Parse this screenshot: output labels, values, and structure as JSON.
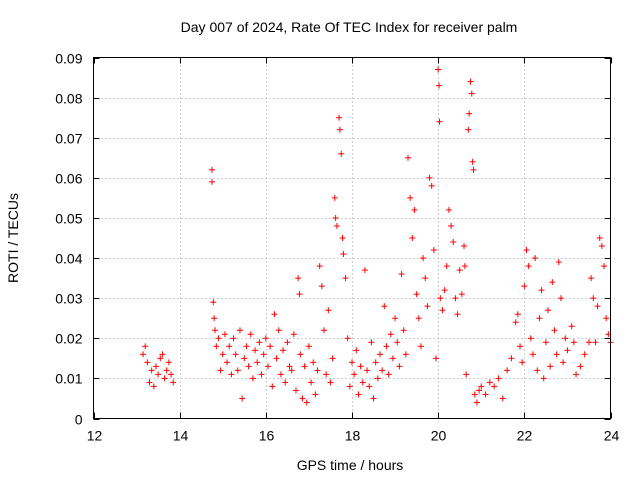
{
  "chart_data": {
    "type": "scatter",
    "title": "Day 007 of 2024, Rate Of TEC Index for receiver palm",
    "xlabel": "GPS time / hours",
    "ylabel": "ROTI / TECUs",
    "xlim": [
      12,
      24
    ],
    "ylim": [
      0,
      0.09
    ],
    "xticks": [
      "12",
      "14",
      "16",
      "18",
      "20",
      "22",
      "24"
    ],
    "yticks": [
      "0",
      "0.01",
      "0.02",
      "0.03",
      "0.04",
      "0.05",
      "0.06",
      "0.07",
      "0.08",
      "0.09"
    ],
    "grid": true,
    "marker": "+",
    "series": [
      {
        "name": "palm",
        "color": "#ff0000",
        "points": [
          [
            13.15,
            0.016
          ],
          [
            13.2,
            0.018
          ],
          [
            13.25,
            0.014
          ],
          [
            13.3,
            0.009
          ],
          [
            13.35,
            0.012
          ],
          [
            13.4,
            0.008
          ],
          [
            13.45,
            0.013
          ],
          [
            13.5,
            0.011
          ],
          [
            13.55,
            0.015
          ],
          [
            13.6,
            0.016
          ],
          [
            13.65,
            0.01
          ],
          [
            13.7,
            0.012
          ],
          [
            13.75,
            0.014
          ],
          [
            13.8,
            0.011
          ],
          [
            13.85,
            0.009
          ],
          [
            14.75,
            0.062
          ],
          [
            14.75,
            0.059
          ],
          [
            14.78,
            0.029
          ],
          [
            14.8,
            0.025
          ],
          [
            14.82,
            0.022
          ],
          [
            14.85,
            0.018
          ],
          [
            14.9,
            0.02
          ],
          [
            14.95,
            0.012
          ],
          [
            15.0,
            0.016
          ],
          [
            15.05,
            0.021
          ],
          [
            15.1,
            0.014
          ],
          [
            15.15,
            0.018
          ],
          [
            15.2,
            0.011
          ],
          [
            15.25,
            0.02
          ],
          [
            15.3,
            0.016
          ],
          [
            15.35,
            0.012
          ],
          [
            15.4,
            0.022
          ],
          [
            15.45,
            0.005
          ],
          [
            15.5,
            0.015
          ],
          [
            15.55,
            0.018
          ],
          [
            15.6,
            0.013
          ],
          [
            15.65,
            0.021
          ],
          [
            15.7,
            0.01
          ],
          [
            15.75,
            0.017
          ],
          [
            15.8,
            0.014
          ],
          [
            15.85,
            0.019
          ],
          [
            15.9,
            0.011
          ],
          [
            15.95,
            0.016
          ],
          [
            16.0,
            0.02
          ],
          [
            16.05,
            0.013
          ],
          [
            16.1,
            0.018
          ],
          [
            16.15,
            0.008
          ],
          [
            16.2,
            0.026
          ],
          [
            16.25,
            0.015
          ],
          [
            16.3,
            0.022
          ],
          [
            16.35,
            0.011
          ],
          [
            16.4,
            0.017
          ],
          [
            16.45,
            0.009
          ],
          [
            16.5,
            0.019
          ],
          [
            16.55,
            0.013
          ],
          [
            16.6,
            0.012
          ],
          [
            16.65,
            0.021
          ],
          [
            16.7,
            0.007
          ],
          [
            16.75,
            0.035
          ],
          [
            16.78,
            0.031
          ],
          [
            16.8,
            0.016
          ],
          [
            16.85,
            0.005
          ],
          [
            16.9,
            0.013
          ],
          [
            16.95,
            0.004
          ],
          [
            17.0,
            0.018
          ],
          [
            17.05,
            0.009
          ],
          [
            17.1,
            0.014
          ],
          [
            17.15,
            0.006
          ],
          [
            17.2,
            0.012
          ],
          [
            17.25,
            0.038
          ],
          [
            17.3,
            0.033
          ],
          [
            17.35,
            0.022
          ],
          [
            17.4,
            0.011
          ],
          [
            17.45,
            0.027
          ],
          [
            17.5,
            0.009
          ],
          [
            17.55,
            0.015
          ],
          [
            17.6,
            0.055
          ],
          [
            17.62,
            0.05
          ],
          [
            17.65,
            0.048
          ],
          [
            17.7,
            0.075
          ],
          [
            17.72,
            0.072
          ],
          [
            17.75,
            0.066
          ],
          [
            17.78,
            0.045
          ],
          [
            17.8,
            0.041
          ],
          [
            17.85,
            0.035
          ],
          [
            17.9,
            0.02
          ],
          [
            17.95,
            0.008
          ],
          [
            18.0,
            0.014
          ],
          [
            18.05,
            0.011
          ],
          [
            18.1,
            0.017
          ],
          [
            18.15,
            0.006
          ],
          [
            18.2,
            0.013
          ],
          [
            18.25,
            0.009
          ],
          [
            18.3,
            0.037
          ],
          [
            18.35,
            0.012
          ],
          [
            18.4,
            0.008
          ],
          [
            18.45,
            0.019
          ],
          [
            18.5,
            0.005
          ],
          [
            18.55,
            0.014
          ],
          [
            18.6,
            0.01
          ],
          [
            18.65,
            0.016
          ],
          [
            18.7,
            0.012
          ],
          [
            18.75,
            0.028
          ],
          [
            18.8,
            0.018
          ],
          [
            18.85,
            0.011
          ],
          [
            18.9,
            0.021
          ],
          [
            18.95,
            0.015
          ],
          [
            19.0,
            0.025
          ],
          [
            19.05,
            0.019
          ],
          [
            19.1,
            0.013
          ],
          [
            19.15,
            0.036
          ],
          [
            19.2,
            0.022
          ],
          [
            19.25,
            0.016
          ],
          [
            19.3,
            0.065
          ],
          [
            19.35,
            0.055
          ],
          [
            19.4,
            0.045
          ],
          [
            19.45,
            0.052
          ],
          [
            19.5,
            0.031
          ],
          [
            19.55,
            0.025
          ],
          [
            19.6,
            0.018
          ],
          [
            19.65,
            0.04
          ],
          [
            19.7,
            0.035
          ],
          [
            19.75,
            0.028
          ],
          [
            19.8,
            0.06
          ],
          [
            19.85,
            0.058
          ],
          [
            19.9,
            0.042
          ],
          [
            19.95,
            0.015
          ],
          [
            20.0,
            0.087
          ],
          [
            20.02,
            0.083
          ],
          [
            20.03,
            0.074
          ],
          [
            20.05,
            0.03
          ],
          [
            20.1,
            0.027
          ],
          [
            20.15,
            0.032
          ],
          [
            20.2,
            0.038
          ],
          [
            20.25,
            0.052
          ],
          [
            20.3,
            0.048
          ],
          [
            20.35,
            0.044
          ],
          [
            20.4,
            0.03
          ],
          [
            20.45,
            0.026
          ],
          [
            20.5,
            0.037
          ],
          [
            20.55,
            0.031
          ],
          [
            20.6,
            0.043
          ],
          [
            20.62,
            0.038
          ],
          [
            20.65,
            0.011
          ],
          [
            20.7,
            0.072
          ],
          [
            20.72,
            0.076
          ],
          [
            20.75,
            0.084
          ],
          [
            20.78,
            0.081
          ],
          [
            20.8,
            0.064
          ],
          [
            20.82,
            0.062
          ],
          [
            20.85,
            0.006
          ],
          [
            20.9,
            0.004
          ],
          [
            20.95,
            0.007
          ],
          [
            21.0,
            0.008
          ],
          [
            21.1,
            0.006
          ],
          [
            21.2,
            0.009
          ],
          [
            21.3,
            0.008
          ],
          [
            21.4,
            0.01
          ],
          [
            21.5,
            0.005
          ],
          [
            21.6,
            0.012
          ],
          [
            21.7,
            0.015
          ],
          [
            21.8,
            0.024
          ],
          [
            21.85,
            0.026
          ],
          [
            21.9,
            0.018
          ],
          [
            21.95,
            0.014
          ],
          [
            22.0,
            0.033
          ],
          [
            22.05,
            0.042
          ],
          [
            22.1,
            0.038
          ],
          [
            22.15,
            0.02
          ],
          [
            22.2,
            0.016
          ],
          [
            22.25,
            0.04
          ],
          [
            22.3,
            0.012
          ],
          [
            22.35,
            0.025
          ],
          [
            22.4,
            0.032
          ],
          [
            22.45,
            0.01
          ],
          [
            22.5,
            0.019
          ],
          [
            22.55,
            0.027
          ],
          [
            22.6,
            0.013
          ],
          [
            22.65,
            0.034
          ],
          [
            22.7,
            0.022
          ],
          [
            22.75,
            0.016
          ],
          [
            22.8,
            0.039
          ],
          [
            22.85,
            0.03
          ],
          [
            22.9,
            0.014
          ],
          [
            22.95,
            0.02
          ],
          [
            23.0,
            0.017
          ],
          [
            23.1,
            0.023
          ],
          [
            23.15,
            0.019
          ],
          [
            23.2,
            0.011
          ],
          [
            23.3,
            0.013
          ],
          [
            23.4,
            0.016
          ],
          [
            23.5,
            0.019
          ],
          [
            23.55,
            0.035
          ],
          [
            23.6,
            0.03
          ],
          [
            23.65,
            0.019
          ],
          [
            23.7,
            0.028
          ],
          [
            23.75,
            0.045
          ],
          [
            23.8,
            0.043
          ],
          [
            23.85,
            0.038
          ],
          [
            23.9,
            0.025
          ],
          [
            23.95,
            0.021
          ],
          [
            24.0,
            0.019
          ]
        ]
      }
    ]
  }
}
